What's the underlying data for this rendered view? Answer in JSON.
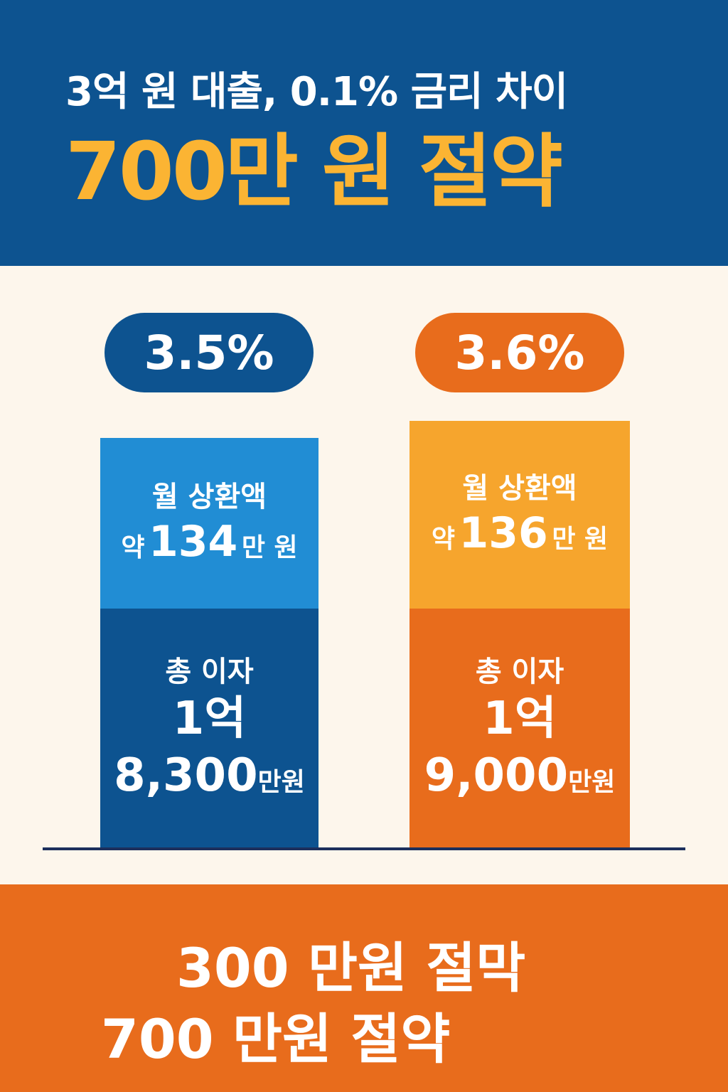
{
  "header": {
    "title": "3억 원 대출, 0.1% 금리 차이",
    "headline": "700만 원 절약"
  },
  "colors": {
    "navy": "#0d5390",
    "light_blue": "#218dd4",
    "orange": "#e86c1c",
    "light_orange": "#f6a52d",
    "yellow": "#fbb433",
    "cream": "#fdf6ec"
  },
  "left": {
    "rate": "3.5%",
    "monthly_label": "월 상환액",
    "monthly_prefix": "약",
    "monthly_value": "134",
    "monthly_unit": "만 원",
    "total_label": "총 이자",
    "total_line1": "1억",
    "total_value": "8,300",
    "total_unit": "만원"
  },
  "right": {
    "rate": "3.6%",
    "monthly_label": "월 상환액",
    "monthly_prefix": "약",
    "monthly_value": "136",
    "monthly_unit": "만 원",
    "total_label": "총 이자",
    "total_line1": "1억",
    "total_value": "9,000",
    "total_unit": "만원"
  },
  "footer": {
    "line1": "300 만원 절막",
    "line2": "700 만원 절약"
  }
}
